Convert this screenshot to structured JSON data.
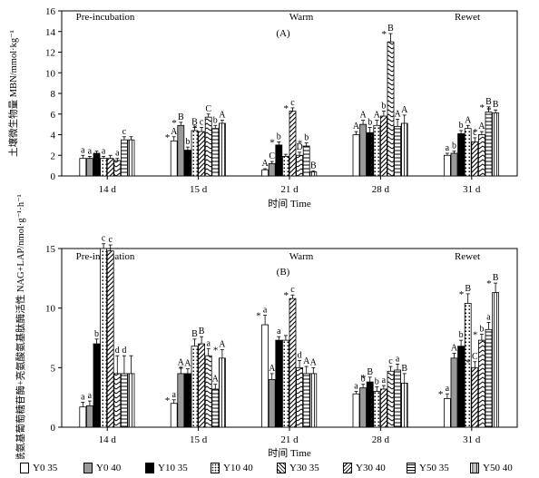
{
  "legend": [
    {
      "label": "Y0 35",
      "pattern": "white"
    },
    {
      "label": "Y0 40",
      "pattern": "gray"
    },
    {
      "label": "Y10 35",
      "pattern": "black"
    },
    {
      "label": "Y10 40",
      "pattern": "dots"
    },
    {
      "label": "Y30 35",
      "pattern": "hatch"
    },
    {
      "label": "Y30 40",
      "pattern": "zigzag"
    },
    {
      "label": "Y50 35",
      "pattern": "hlines"
    },
    {
      "label": "Y50 40",
      "pattern": "vlines"
    }
  ],
  "chart_data": [
    {
      "type": "bar",
      "panel_label": "(A)",
      "ylabel": "土壤微生物量 MBN/mmol·kg⁻¹",
      "xlabel": "时间 Time",
      "ylim": [
        0,
        16
      ],
      "yticks": [
        0,
        2,
        4,
        6,
        8,
        10,
        12,
        14,
        16
      ],
      "categories": [
        "14 d",
        "15 d",
        "21 d",
        "28 d",
        "31 d"
      ],
      "phases": [
        "Pre-incubation",
        "Warm",
        "Rewet"
      ],
      "series": [
        {
          "name": "Y0 35",
          "values": [
            1.7,
            3.4,
            0.6,
            4.0,
            2.0
          ],
          "errors": [
            0.3,
            0.4,
            0.1,
            0.3,
            0.2
          ]
        },
        {
          "name": "Y0 40",
          "values": [
            1.7,
            4.9,
            1.2,
            5.0,
            2.2
          ],
          "errors": [
            0.2,
            0.3,
            0.2,
            0.4,
            0.2
          ]
        },
        {
          "name": "Y10 35",
          "values": [
            2.2,
            2.5,
            3.0,
            4.2,
            4.1
          ],
          "errors": [
            0.2,
            0.3,
            0.3,
            0.5,
            0.3
          ]
        },
        {
          "name": "Y10 40",
          "values": [
            1.7,
            4.4,
            1.9,
            4.9,
            4.6
          ],
          "errors": [
            0.2,
            0.3,
            0.2,
            0.5,
            0.3
          ]
        },
        {
          "name": "Y30 35",
          "values": [
            1.7,
            4.3,
            6.3,
            5.8,
            3.3
          ],
          "errors": [
            0.3,
            0.4,
            0.3,
            0.5,
            0.4
          ]
        },
        {
          "name": "Y30 40",
          "values": [
            1.5,
            5.7,
            2.0,
            13.0,
            4.0
          ],
          "errors": [
            0.2,
            0.3,
            0.3,
            0.8,
            0.3
          ]
        },
        {
          "name": "Y50 35",
          "values": [
            3.5,
            4.6,
            2.9,
            4.8,
            6.2
          ],
          "errors": [
            0.3,
            0.3,
            0.3,
            0.7,
            0.5
          ]
        },
        {
          "name": "Y50 40",
          "values": [
            3.5,
            5.1,
            0.4,
            5.1,
            6.1
          ],
          "errors": [
            0.3,
            0.3,
            0.1,
            0.8,
            0.3
          ]
        }
      ],
      "labels": [
        [
          "a",
          "a",
          "",
          "a",
          "",
          "a",
          "c",
          ""
        ],
        [
          "A",
          "B",
          "b",
          "B",
          "c",
          "C",
          "b",
          "A"
        ],
        [
          "A",
          "C",
          "b",
          "",
          "c",
          "D",
          "b",
          "B"
        ],
        [
          "A",
          "A",
          "b",
          "A",
          "b",
          "B",
          "A",
          "A"
        ],
        [
          "a",
          "b",
          "b",
          "A",
          "c",
          "A",
          "B",
          "B"
        ]
      ],
      "stars": [
        [
          0,
          0,
          0,
          0,
          0,
          0,
          0,
          0
        ],
        [
          1,
          1,
          0,
          0,
          1,
          0,
          0,
          0
        ],
        [
          0,
          0,
          1,
          0,
          1,
          0,
          1,
          0
        ],
        [
          0,
          0,
          0,
          0,
          0,
          1,
          0,
          0
        ],
        [
          0,
          0,
          0,
          0,
          0,
          1,
          1,
          1
        ]
      ]
    },
    {
      "type": "bar",
      "panel_label": "(B)",
      "ylabel": "N-乙酰氨基葡萄糖苷酶+亮氨酸氨基肽酶活性 NAG+LAP/nmol·g⁻¹·h⁻¹",
      "xlabel": "时间 Time",
      "ylim": [
        0,
        15
      ],
      "yticks": [
        0,
        5,
        10,
        15
      ],
      "categories": [
        "14 d",
        "15 d",
        "21 d",
        "28 d",
        "31 d"
      ],
      "phases": [
        "Pre-incubation",
        "Warm",
        "Rewet"
      ],
      "series": [
        {
          "name": "Y0 35",
          "values": [
            1.7,
            2.0,
            8.6,
            2.8,
            2.4
          ],
          "errors": [
            0.4,
            0.3,
            0.8,
            0.2,
            0.4
          ]
        },
        {
          "name": "Y0 40",
          "values": [
            1.8,
            4.5,
            4.0,
            3.3,
            5.8
          ],
          "errors": [
            0.4,
            0.5,
            0.5,
            0.3,
            0.4
          ]
        },
        {
          "name": "Y10 35",
          "values": [
            7.0,
            4.5,
            7.3,
            3.8,
            6.8
          ],
          "errors": [
            0.4,
            0.4,
            0.3,
            0.4,
            0.5
          ]
        },
        {
          "name": "Y10 40",
          "values": [
            15.0,
            6.8,
            7.3,
            3.0,
            10.4
          ],
          "errors": [
            0.4,
            0.6,
            0.4,
            0.4,
            0.8
          ]
        },
        {
          "name": "Y30 35",
          "values": [
            14.8,
            7.0,
            10.8,
            3.2,
            5.0
          ],
          "errors": [
            0.5,
            0.6,
            0.3,
            0.3,
            0.5
          ]
        },
        {
          "name": "Y30 40",
          "values": [
            4.5,
            6.0,
            5.0,
            4.7,
            7.3
          ],
          "errors": [
            1.5,
            0.6,
            0.6,
            0.4,
            0.5
          ]
        },
        {
          "name": "Y50 35",
          "values": [
            4.5,
            3.2,
            4.5,
            4.8,
            8.2
          ],
          "errors": [
            1.5,
            0.4,
            0.6,
            0.5,
            0.6
          ]
        },
        {
          "name": "Y50 40",
          "values": [
            4.5,
            5.8,
            4.5,
            3.7,
            11.3
          ],
          "errors": [
            1.5,
            0.7,
            0.5,
            0.8,
            0.8
          ]
        }
      ],
      "labels": [
        [
          "a",
          "a",
          "b",
          "c",
          "c",
          "d",
          "d",
          ""
        ],
        [
          "a",
          "A",
          "A",
          "B",
          "B",
          "a",
          "A",
          "A"
        ],
        [
          "a",
          "A",
          "a",
          "",
          "c",
          "d",
          "A",
          "A"
        ],
        [
          "a",
          "b",
          "B",
          "b",
          "a",
          "c",
          "a",
          "B"
        ],
        [
          "a",
          "A",
          "b",
          "B",
          "C",
          "b",
          "a",
          "B"
        ]
      ],
      "stars": [
        [
          0,
          0,
          0,
          0,
          0,
          0,
          0,
          0
        ],
        [
          1,
          0,
          1,
          0,
          0,
          0,
          0,
          1
        ],
        [
          1,
          0,
          0,
          0,
          1,
          0,
          0,
          0
        ],
        [
          0,
          0,
          1,
          0,
          0,
          0,
          0,
          0
        ],
        [
          1,
          0,
          0,
          1,
          1,
          1,
          0,
          1
        ]
      ]
    }
  ]
}
